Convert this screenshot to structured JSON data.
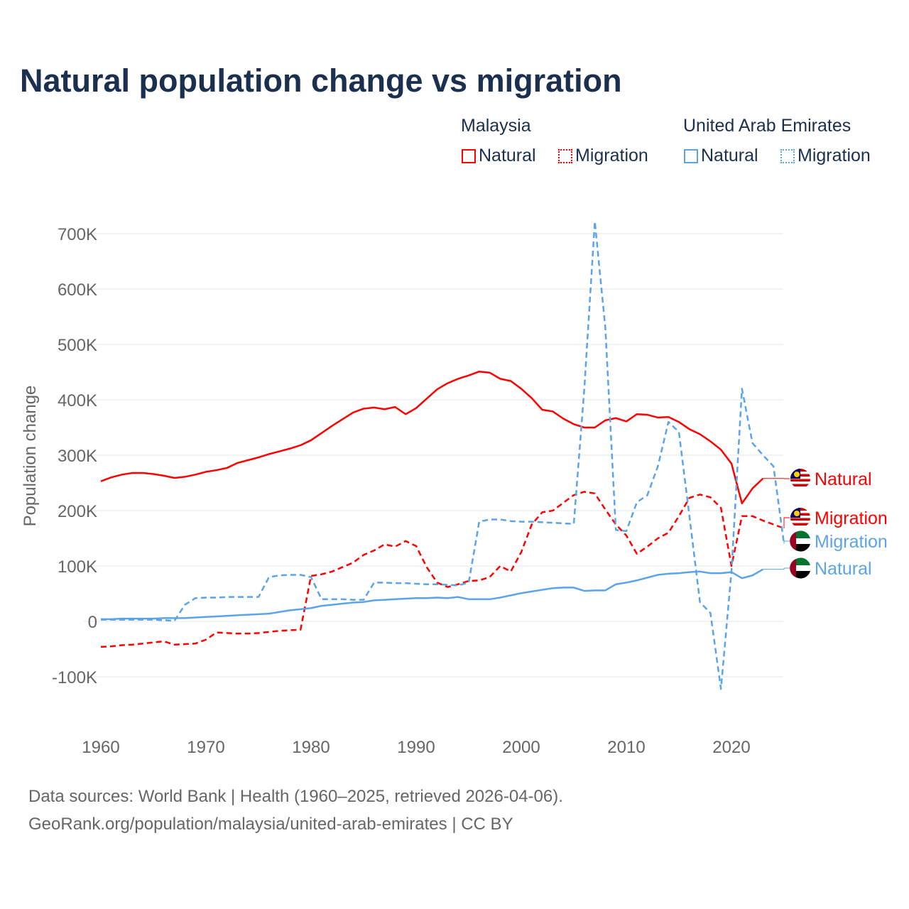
{
  "colors": {
    "malaysia": "#ff0000",
    "uae": "#5ba4ea",
    "grid": "#e6e6e6",
    "tick": "#666666"
  },
  "chart_data": {
    "type": "line",
    "title": "Natural population change vs migration",
    "ylabel": "Population change",
    "xlabel": "",
    "ylim": [
      -150000,
      730000
    ],
    "xlim": [
      1960,
      2025
    ],
    "grid": true,
    "yticks": [
      {
        "v": -100000,
        "label": "-100K"
      },
      {
        "v": 0,
        "label": "0"
      },
      {
        "v": 100000,
        "label": "100K"
      },
      {
        "v": 200000,
        "label": "200K"
      },
      {
        "v": 300000,
        "label": "300K"
      },
      {
        "v": 400000,
        "label": "400K"
      },
      {
        "v": 500000,
        "label": "500K"
      },
      {
        "v": 600000,
        "label": "600K"
      },
      {
        "v": 700000,
        "label": "700K"
      }
    ],
    "xticks": [
      {
        "v": 1960,
        "label": "1960"
      },
      {
        "v": 1970,
        "label": "1970"
      },
      {
        "v": 1980,
        "label": "1980"
      },
      {
        "v": 1990,
        "label": "1990"
      },
      {
        "v": 2000,
        "label": "2000"
      },
      {
        "v": 2010,
        "label": "2010"
      },
      {
        "v": 2020,
        "label": "2020"
      }
    ],
    "legend": {
      "placement": "top-right",
      "groups": [
        {
          "name": "Malaysia",
          "items": [
            "Natural",
            "Migration"
          ]
        },
        {
          "name": "United Arab Emirates",
          "items": [
            "Natural",
            "Migration"
          ]
        }
      ]
    },
    "series": [
      {
        "id": "my-natural",
        "country": "Malaysia",
        "name": "Natural",
        "style": "solid",
        "start": 1960,
        "end_label": "Natural",
        "values": [
          253,
          260,
          265,
          268,
          268,
          266,
          263,
          259,
          261,
          265,
          270,
          273,
          277,
          286,
          291,
          296,
          302,
          307,
          312,
          318,
          327,
          340,
          353,
          365,
          377,
          384,
          386,
          383,
          387,
          374,
          385,
          402,
          419,
          430,
          438,
          444,
          451,
          449,
          438,
          434,
          420,
          403,
          382,
          379,
          366,
          356,
          350,
          350,
          363,
          367,
          361,
          374,
          373,
          368,
          369,
          360,
          347,
          338,
          325,
          310,
          285,
          213,
          240,
          258
        ]
      },
      {
        "id": "my-migration",
        "country": "Malaysia",
        "name": "Migration",
        "style": "dashed",
        "start": 1960,
        "end_label": "Migration",
        "values": [
          -46,
          -45,
          -43,
          -42,
          -40,
          -38,
          -36,
          -42,
          -41,
          -40,
          -33,
          -20,
          -21,
          -22,
          -22,
          -21,
          -19,
          -17,
          -16,
          -15,
          82,
          85,
          90,
          98,
          106,
          120,
          128,
          139,
          135,
          145,
          136,
          98,
          70,
          62,
          67,
          73,
          74,
          80,
          100,
          90,
          125,
          175,
          197,
          200,
          214,
          228,
          234,
          231,
          202,
          175,
          155,
          122,
          135,
          150,
          160,
          190,
          223,
          229,
          224,
          205,
          100,
          190,
          190,
          182,
          175,
          168
        ]
      },
      {
        "id": "uae-migration",
        "country": "United Arab Emirates",
        "name": "Migration",
        "style": "dashed",
        "start": 1960,
        "end_label": "Migration",
        "values": [
          3,
          3,
          3,
          3,
          3,
          3,
          2,
          1,
          30,
          42,
          43,
          43,
          44,
          44,
          44,
          44,
          80,
          83,
          84,
          84,
          80,
          40,
          40,
          40,
          39,
          39,
          70,
          70,
          69,
          69,
          68,
          67,
          67,
          66,
          65,
          70,
          180,
          184,
          184,
          181,
          180,
          180,
          179,
          178,
          177,
          176,
          420,
          722,
          530,
          165,
          163,
          215,
          228,
          280,
          360,
          342,
          190,
          35,
          15,
          -122,
          90,
          420,
          322,
          300,
          280,
          140
        ]
      },
      {
        "id": "uae-natural",
        "country": "United Arab Emirates",
        "name": "Natural",
        "style": "solid",
        "start": 1960,
        "end_label": "Natural",
        "values": [
          4,
          4,
          5,
          5,
          5,
          5,
          6,
          6,
          6,
          7,
          8,
          9,
          10,
          11,
          12,
          13,
          14,
          17,
          20,
          22,
          24,
          28,
          30,
          32,
          34,
          35,
          38,
          39,
          40,
          41,
          42,
          42,
          43,
          42,
          44,
          40,
          40,
          40,
          43,
          47,
          51,
          54,
          57,
          60,
          61,
          61,
          55,
          56,
          56,
          67,
          70,
          74,
          79,
          84,
          86,
          87,
          89,
          90,
          87,
          87,
          89,
          78,
          83,
          94
        ]
      }
    ]
  },
  "legend": {
    "malaysia": "Malaysia",
    "uae": "United Arab Emirates",
    "natural": "Natural",
    "migration": "Migration"
  },
  "source": {
    "line1": "Data sources: World Bank | Health (1960–2025, retrieved 2026-04-06).",
    "line2": "GeoRank.org/population/malaysia/united-arab-emirates | CC BY"
  }
}
